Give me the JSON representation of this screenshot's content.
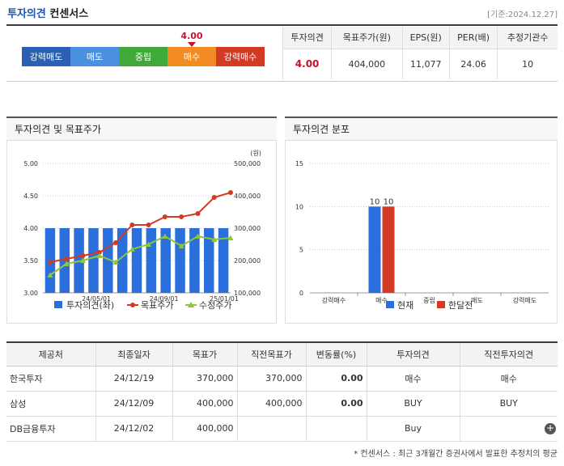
{
  "header": {
    "title_part1": "투자의견",
    "title_part2": "컨센서스",
    "date_note": "[기준:2024.12.27]"
  },
  "scale": {
    "current_value": "4.00",
    "current_fraction": 0.7,
    "segments": [
      {
        "label": "강력매도",
        "color": "#2b5fb3"
      },
      {
        "label": "매도",
        "color": "#4a8fe0"
      },
      {
        "label": "중립",
        "color": "#3fa93a"
      },
      {
        "label": "매수",
        "color": "#f38b24"
      },
      {
        "label": "강력매수",
        "color": "#d23a24"
      }
    ]
  },
  "summary": {
    "headers": [
      "투자의견",
      "목표주가(원)",
      "EPS(원)",
      "PER(배)",
      "추정기관수"
    ],
    "values": [
      "4.00",
      "404,000",
      "11,077",
      "24.06",
      "10"
    ]
  },
  "chart1_panel": {
    "title": "투자의견 및 목표주가"
  },
  "chart2_panel": {
    "title": "투자의견 분포"
  },
  "chart_data": [
    {
      "type": "bar",
      "title": "투자의견 및 목표주가",
      "y_left_ticks": [
        "5.00",
        "4.50",
        "4.00",
        "3.50",
        "3.00"
      ],
      "y_left_range": [
        3.0,
        5.0
      ],
      "y_right_unit": "(원)",
      "y_right_ticks": [
        "500,000",
        "400,000",
        "300,000",
        "200,000",
        "100,000"
      ],
      "y_right_range": [
        100000,
        500000
      ],
      "x_ticks": [
        "24/05/01",
        "24/09/01",
        "25/01/01"
      ],
      "legend": [
        "투자의견(좌)",
        "목표주가",
        "수정주가"
      ],
      "series": [
        {
          "name": "투자의견(좌)",
          "kind": "bar",
          "color": "#2a6fdb",
          "values": [
            4,
            4,
            4,
            4,
            4,
            4,
            4,
            4,
            4,
            4,
            4,
            4,
            4
          ]
        },
        {
          "name": "목표주가",
          "kind": "line",
          "color": "#d23a24",
          "values": [
            195000,
            205000,
            215000,
            225000,
            255000,
            310000,
            310000,
            335000,
            335000,
            345000,
            395000,
            410000
          ]
        },
        {
          "name": "수정주가",
          "kind": "line",
          "color": "#8cc63f",
          "values": [
            155000,
            190000,
            200000,
            215000,
            195000,
            235000,
            250000,
            275000,
            245000,
            275000,
            265000,
            270000
          ]
        }
      ]
    },
    {
      "type": "bar",
      "title": "투자의견 분포",
      "y_ticks": [
        "15",
        "10",
        "5",
        "0"
      ],
      "ylim": [
        0,
        15
      ],
      "categories": [
        "강력매수",
        "매수",
        "중립",
        "매도",
        "강력매도"
      ],
      "legend": [
        "현재",
        "한달전"
      ],
      "series": [
        {
          "name": "현재",
          "color": "#2a6fdb",
          "values": [
            0,
            10,
            0,
            0,
            0
          ]
        },
        {
          "name": "한달전",
          "color": "#d23a24",
          "values": [
            0,
            10,
            0,
            0,
            0
          ]
        }
      ],
      "data_labels": [
        "10",
        "10"
      ]
    }
  ],
  "details": {
    "headers": [
      "제공처",
      "최종일자",
      "목표가",
      "직전목표가",
      "변동률(%)",
      "투자의견",
      "직전투자의견"
    ],
    "rows": [
      [
        "한국투자",
        "24/12/19",
        "370,000",
        "370,000",
        "0.00",
        "매수",
        "매수"
      ],
      [
        "삼성",
        "24/12/09",
        "400,000",
        "400,000",
        "0.00",
        "BUY",
        "BUY"
      ],
      [
        "DB금융투자",
        "24/12/02",
        "400,000",
        "",
        "",
        "Buy",
        ""
      ]
    ],
    "more_icon": "plus-circle-icon"
  },
  "footnote": "* 컨센서스 : 최근 3개월간 증권사에서 발표한 추정치의 평균"
}
